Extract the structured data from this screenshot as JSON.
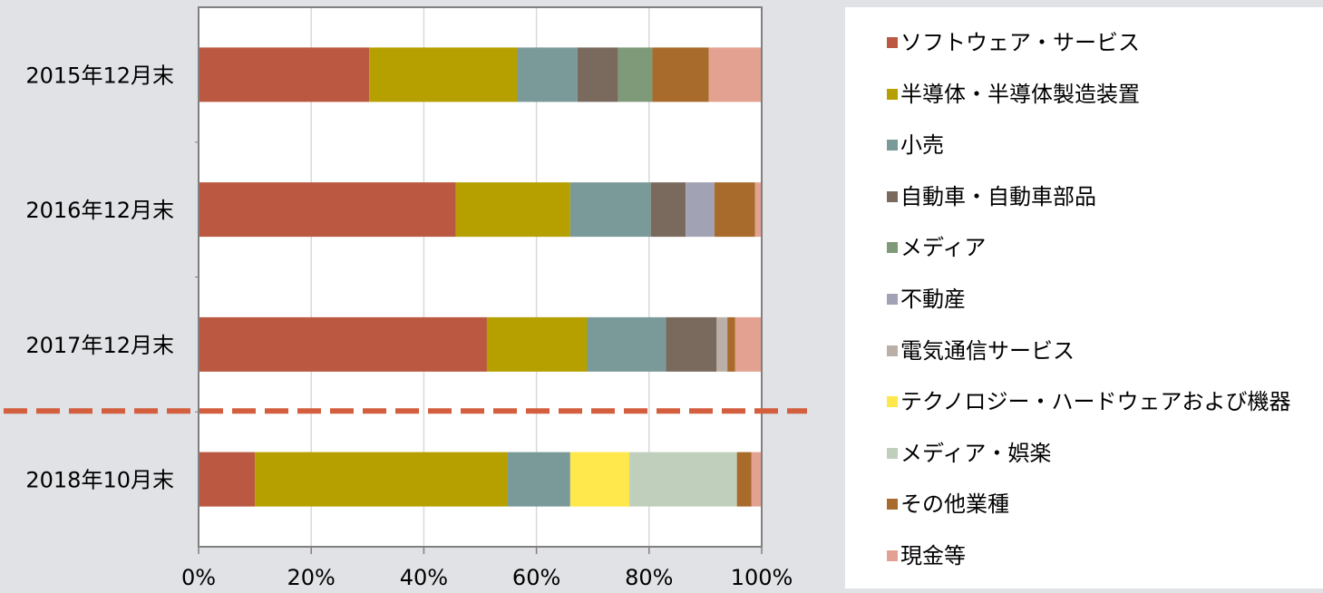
{
  "colors": {
    "background": "#e1e2e6",
    "plot_background": "#ffffff",
    "gridline": "#d9d9d9",
    "axis": "#808080",
    "separator": "#d35f3f"
  },
  "chart_data": {
    "type": "bar",
    "orientation": "horizontal",
    "stacked": "percent",
    "title": "",
    "xlabel": "",
    "ylabel": "",
    "xlim": [
      0,
      100
    ],
    "x_ticks": [
      "0%",
      "20%",
      "40%",
      "60%",
      "80%",
      "100%"
    ],
    "grid": true,
    "legend_position": "right",
    "separator": "dashed line between 2017年12月末 and 2018年10月末",
    "categories": [
      "2015年12月末",
      "2016年12月末",
      "2017年12月末",
      "2018年10月末"
    ],
    "series": [
      {
        "name": "ソフトウェア・サービス",
        "color": "#bb5841",
        "values": [
          30.3,
          45.7,
          51.2,
          10.0
        ]
      },
      {
        "name": "半導体・半導体製造装置",
        "color": "#b5a000",
        "values": [
          26.3,
          20.3,
          17.8,
          44.9
        ]
      },
      {
        "name": "小売",
        "color": "#7a9a99",
        "values": [
          10.7,
          14.3,
          14.0,
          11.1
        ]
      },
      {
        "name": "自動車・自動車部品",
        "color": "#7a6a5e",
        "values": [
          7.2,
          6.2,
          9.0,
          0
        ]
      },
      {
        "name": "メディア",
        "color": "#7f9a78",
        "values": [
          6.1,
          0,
          0,
          0
        ]
      },
      {
        "name": "不動産",
        "color": "#a2a2b5",
        "values": [
          0,
          5.1,
          0,
          0
        ]
      },
      {
        "name": "電気通信サービス",
        "color": "#bab0a8",
        "values": [
          0,
          0,
          1.9,
          0
        ]
      },
      {
        "name": "テクノロジー・ハードウェアおよび機器",
        "color": "#fee84c",
        "values": [
          0,
          0,
          0,
          10.5
        ]
      },
      {
        "name": "メディア・娯楽",
        "color": "#c0cfbb",
        "values": [
          0,
          0,
          0,
          19.1
        ]
      },
      {
        "name": "その他業種",
        "color": "#a86b2b",
        "values": [
          10.0,
          7.2,
          1.4,
          2.6
        ]
      },
      {
        "name": "現金等",
        "color": "#e3a291",
        "values": [
          9.4,
          1.2,
          4.7,
          1.8
        ]
      }
    ]
  }
}
